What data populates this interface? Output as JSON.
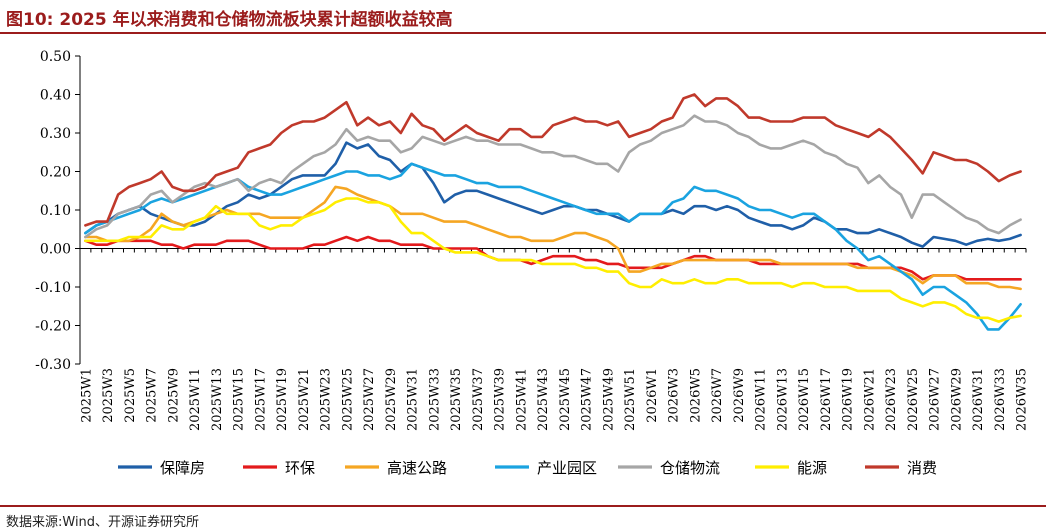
{
  "title": "图10:  2025 年以来消费和仓储物流板块累计超额收益较高",
  "source": "数据来源:Wind、开源证券研究所",
  "chart_data": {
    "type": "line",
    "title": "图10:  2025 年以来消费和仓储物流板块累计超额收益较高",
    "xlabel": "",
    "ylabel": "",
    "ylim": [
      -0.3,
      0.5
    ],
    "yticks": [
      "0.50",
      "0.40",
      "0.30",
      "0.20",
      "0.10",
      "0.00",
      "-0.10",
      "-0.20",
      "-0.30"
    ],
    "grid": false,
    "legend": "bottom",
    "x": [
      "2025W1",
      "2025W2",
      "2025W3",
      "2025W4",
      "2025W5",
      "2025W6",
      "2025W7",
      "2025W8",
      "2025W9",
      "2025W10",
      "2025W11",
      "2025W12",
      "2025W13",
      "2025W14",
      "2025W15",
      "2025W16",
      "2025W17",
      "2025W18",
      "2025W19",
      "2025W20",
      "2025W21",
      "2025W22",
      "2025W23",
      "2025W24",
      "2025W25",
      "2025W26",
      "2025W27",
      "2025W28",
      "2025W29",
      "2025W30",
      "2025W31",
      "2025W32",
      "2025W33",
      "2025W34",
      "2025W35",
      "2025W36",
      "2025W37",
      "2025W38",
      "2025W39",
      "2025W40",
      "2025W41",
      "2025W42",
      "2025W43",
      "2025W44",
      "2025W45",
      "2025W46",
      "2025W47",
      "2025W48",
      "2025W49",
      "2025W50",
      "2025W51",
      "2025W52",
      "2026W1",
      "2026W2",
      "2026W3",
      "2026W4",
      "2026W5",
      "2026W6",
      "2026W7",
      "2026W8",
      "2026W9",
      "2026W10",
      "2026W11",
      "2026W12",
      "2026W13",
      "2026W14",
      "2026W15",
      "2026W16",
      "2026W17",
      "2026W18",
      "2026W19",
      "2026W20",
      "2026W21",
      "2026W22",
      "2026W23",
      "2026W24",
      "2026W25",
      "2026W26",
      "2026W27",
      "2026W28",
      "2026W29",
      "2026W30",
      "2026W31",
      "2026W32",
      "2026W33",
      "2026W34",
      "2026W35"
    ],
    "xtick_labels": [
      "2025W1",
      "2025W3",
      "2025W5",
      "2025W7",
      "2025W9",
      "2025W11",
      "2025W13",
      "2025W15",
      "2025W17",
      "2025W19",
      "2025W21",
      "2025W23",
      "2025W25",
      "2025W27",
      "2025W29",
      "2025W31",
      "2025W33",
      "2025W35",
      "2025W37",
      "2025W39",
      "2025W41",
      "2025W43",
      "2025W45",
      "2025W47",
      "2025W49",
      "2025W51",
      "2026W1",
      "2026W3",
      "2026W5",
      "2026W7",
      "2026W9",
      "2026W11",
      "2026W13",
      "2026W15",
      "2026W17",
      "2026W19",
      "2026W21",
      "2026W23",
      "2026W25",
      "2026W27",
      "2026W29",
      "2026W31",
      "2026W33",
      "2026W35"
    ],
    "series": [
      {
        "name": "保障房",
        "color": "#1f5fa8",
        "values": [
          0.04,
          0.06,
          0.07,
          0.09,
          0.1,
          0.11,
          0.09,
          0.08,
          0.07,
          0.06,
          0.06,
          0.07,
          0.09,
          0.11,
          0.12,
          0.14,
          0.13,
          0.14,
          0.16,
          0.18,
          0.19,
          0.19,
          0.19,
          0.22,
          0.275,
          0.26,
          0.27,
          0.24,
          0.23,
          0.2,
          0.22,
          0.21,
          0.17,
          0.12,
          0.14,
          0.15,
          0.15,
          0.14,
          0.13,
          0.12,
          0.11,
          0.1,
          0.09,
          0.1,
          0.11,
          0.11,
          0.1,
          0.1,
          0.09,
          0.08,
          0.07,
          0.09,
          0.09,
          0.09,
          0.1,
          0.09,
          0.11,
          0.11,
          0.1,
          0.11,
          0.1,
          0.08,
          0.07,
          0.06,
          0.06,
          0.05,
          0.06,
          0.08,
          0.07,
          0.05,
          0.05,
          0.04,
          0.04,
          0.05,
          0.04,
          0.03,
          0.015,
          0.005,
          0.03,
          0.025,
          0.02,
          0.01,
          0.02,
          0.025,
          0.02,
          0.025,
          0.035
        ]
      },
      {
        "name": "环保",
        "color": "#e31a1c",
        "values": [
          0.02,
          0.01,
          0.01,
          0.02,
          0.02,
          0.02,
          0.02,
          0.01,
          0.01,
          0.0,
          0.01,
          0.01,
          0.01,
          0.02,
          0.02,
          0.02,
          0.01,
          0.0,
          0.0,
          0.0,
          0.0,
          0.01,
          0.01,
          0.02,
          0.03,
          0.02,
          0.03,
          0.02,
          0.02,
          0.01,
          0.01,
          0.01,
          0.0,
          0.0,
          0.0,
          0.0,
          0.0,
          -0.02,
          -0.03,
          -0.03,
          -0.03,
          -0.04,
          -0.03,
          -0.02,
          -0.02,
          -0.02,
          -0.03,
          -0.03,
          -0.04,
          -0.04,
          -0.05,
          -0.05,
          -0.05,
          -0.05,
          -0.04,
          -0.03,
          -0.02,
          -0.02,
          -0.03,
          -0.03,
          -0.03,
          -0.03,
          -0.04,
          -0.04,
          -0.04,
          -0.04,
          -0.04,
          -0.04,
          -0.04,
          -0.04,
          -0.04,
          -0.04,
          -0.05,
          -0.05,
          -0.05,
          -0.05,
          -0.06,
          -0.08,
          -0.07,
          -0.07,
          -0.07,
          -0.08,
          -0.08,
          -0.08,
          -0.08,
          -0.08,
          -0.08
        ]
      },
      {
        "name": "高速公路",
        "color": "#f5a623",
        "values": [
          0.03,
          0.03,
          0.02,
          0.02,
          0.02,
          0.03,
          0.05,
          0.09,
          0.07,
          0.06,
          0.07,
          0.08,
          0.09,
          0.1,
          0.09,
          0.09,
          0.09,
          0.08,
          0.08,
          0.08,
          0.08,
          0.1,
          0.12,
          0.16,
          0.155,
          0.14,
          0.13,
          0.12,
          0.11,
          0.09,
          0.09,
          0.09,
          0.08,
          0.07,
          0.07,
          0.07,
          0.06,
          0.05,
          0.04,
          0.03,
          0.03,
          0.02,
          0.02,
          0.02,
          0.03,
          0.04,
          0.04,
          0.03,
          0.02,
          0.0,
          -0.06,
          -0.06,
          -0.05,
          -0.04,
          -0.04,
          -0.03,
          -0.03,
          -0.03,
          -0.03,
          -0.03,
          -0.03,
          -0.03,
          -0.03,
          -0.03,
          -0.04,
          -0.04,
          -0.04,
          -0.04,
          -0.04,
          -0.04,
          -0.04,
          -0.05,
          -0.05,
          -0.05,
          -0.05,
          -0.06,
          -0.07,
          -0.09,
          -0.07,
          -0.07,
          -0.07,
          -0.09,
          -0.09,
          -0.09,
          -0.1,
          -0.1,
          -0.105
        ]
      },
      {
        "name": "产业园区",
        "color": "#1aa3e0",
        "values": [
          0.04,
          0.06,
          0.07,
          0.08,
          0.09,
          0.1,
          0.12,
          0.13,
          0.12,
          0.13,
          0.14,
          0.15,
          0.16,
          0.17,
          0.18,
          0.16,
          0.15,
          0.14,
          0.14,
          0.15,
          0.16,
          0.17,
          0.18,
          0.19,
          0.2,
          0.2,
          0.19,
          0.19,
          0.18,
          0.19,
          0.22,
          0.21,
          0.2,
          0.19,
          0.19,
          0.18,
          0.17,
          0.17,
          0.16,
          0.16,
          0.16,
          0.15,
          0.14,
          0.13,
          0.12,
          0.11,
          0.1,
          0.09,
          0.09,
          0.09,
          0.07,
          0.09,
          0.09,
          0.09,
          0.12,
          0.13,
          0.16,
          0.15,
          0.15,
          0.14,
          0.13,
          0.11,
          0.1,
          0.1,
          0.09,
          0.08,
          0.09,
          0.09,
          0.07,
          0.05,
          0.02,
          0.0,
          -0.03,
          -0.02,
          -0.04,
          -0.06,
          -0.08,
          -0.12,
          -0.1,
          -0.1,
          -0.12,
          -0.14,
          -0.17,
          -0.21,
          -0.21,
          -0.18,
          -0.145
        ]
      },
      {
        "name": "仓储物流",
        "color": "#a6a6a6",
        "values": [
          0.03,
          0.05,
          0.06,
          0.09,
          0.1,
          0.11,
          0.14,
          0.15,
          0.12,
          0.14,
          0.16,
          0.17,
          0.16,
          0.17,
          0.18,
          0.15,
          0.17,
          0.18,
          0.17,
          0.2,
          0.22,
          0.24,
          0.25,
          0.27,
          0.31,
          0.28,
          0.29,
          0.28,
          0.28,
          0.25,
          0.26,
          0.29,
          0.28,
          0.27,
          0.28,
          0.29,
          0.28,
          0.28,
          0.27,
          0.27,
          0.27,
          0.26,
          0.25,
          0.25,
          0.24,
          0.24,
          0.23,
          0.22,
          0.22,
          0.2,
          0.25,
          0.27,
          0.28,
          0.3,
          0.31,
          0.32,
          0.345,
          0.33,
          0.33,
          0.32,
          0.3,
          0.29,
          0.27,
          0.26,
          0.26,
          0.27,
          0.28,
          0.27,
          0.25,
          0.24,
          0.22,
          0.21,
          0.17,
          0.19,
          0.16,
          0.14,
          0.08,
          0.14,
          0.14,
          0.12,
          0.1,
          0.08,
          0.07,
          0.05,
          0.04,
          0.06,
          0.075
        ]
      },
      {
        "name": "能源",
        "color": "#ffee00",
        "values": [
          0.02,
          0.02,
          0.02,
          0.02,
          0.03,
          0.03,
          0.03,
          0.06,
          0.05,
          0.05,
          0.07,
          0.08,
          0.11,
          0.09,
          0.09,
          0.09,
          0.06,
          0.05,
          0.06,
          0.06,
          0.08,
          0.09,
          0.1,
          0.12,
          0.13,
          0.13,
          0.12,
          0.12,
          0.11,
          0.07,
          0.04,
          0.04,
          0.02,
          0.0,
          -0.01,
          -0.01,
          -0.01,
          -0.02,
          -0.03,
          -0.03,
          -0.03,
          -0.03,
          -0.04,
          -0.04,
          -0.04,
          -0.04,
          -0.05,
          -0.05,
          -0.06,
          -0.06,
          -0.09,
          -0.1,
          -0.1,
          -0.08,
          -0.09,
          -0.09,
          -0.08,
          -0.09,
          -0.09,
          -0.08,
          -0.08,
          -0.09,
          -0.09,
          -0.09,
          -0.09,
          -0.1,
          -0.09,
          -0.09,
          -0.1,
          -0.1,
          -0.1,
          -0.11,
          -0.11,
          -0.11,
          -0.11,
          -0.13,
          -0.14,
          -0.15,
          -0.14,
          -0.14,
          -0.15,
          -0.17,
          -0.18,
          -0.18,
          -0.19,
          -0.18,
          -0.175
        ]
      },
      {
        "name": "消费",
        "color": "#c0392b",
        "values": [
          0.06,
          0.07,
          0.07,
          0.14,
          0.16,
          0.17,
          0.18,
          0.2,
          0.16,
          0.15,
          0.15,
          0.16,
          0.19,
          0.2,
          0.21,
          0.25,
          0.26,
          0.27,
          0.3,
          0.32,
          0.33,
          0.33,
          0.34,
          0.36,
          0.38,
          0.32,
          0.34,
          0.32,
          0.33,
          0.3,
          0.35,
          0.32,
          0.31,
          0.28,
          0.3,
          0.32,
          0.3,
          0.29,
          0.28,
          0.31,
          0.31,
          0.29,
          0.29,
          0.32,
          0.33,
          0.34,
          0.33,
          0.33,
          0.32,
          0.33,
          0.29,
          0.3,
          0.31,
          0.33,
          0.34,
          0.39,
          0.4,
          0.37,
          0.39,
          0.39,
          0.37,
          0.34,
          0.34,
          0.33,
          0.33,
          0.33,
          0.34,
          0.34,
          0.34,
          0.32,
          0.31,
          0.3,
          0.29,
          0.31,
          0.29,
          0.26,
          0.23,
          0.195,
          0.25,
          0.24,
          0.23,
          0.23,
          0.22,
          0.2,
          0.175,
          0.19,
          0.2
        ]
      }
    ]
  }
}
